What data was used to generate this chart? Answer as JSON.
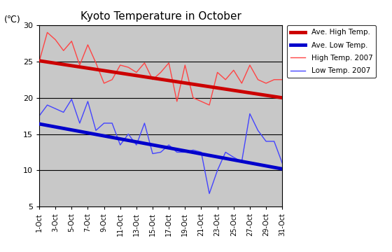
{
  "title": "Kyoto Temperature in October",
  "unit_label": "(℃)",
  "ylim": [
    5,
    30
  ],
  "yticks": [
    5,
    10,
    15,
    20,
    25,
    30
  ],
  "days": [
    1,
    2,
    3,
    4,
    5,
    6,
    7,
    8,
    9,
    10,
    11,
    12,
    13,
    14,
    15,
    16,
    17,
    18,
    19,
    20,
    21,
    22,
    23,
    24,
    25,
    26,
    27,
    28,
    29,
    30,
    31
  ],
  "xlabels": [
    "1-Oct",
    "3-Oct",
    "5-Oct",
    "7-Oct",
    "9-Oct",
    "11-Oct",
    "13-Oct",
    "15-Oct",
    "17-Oct",
    "19-Oct",
    "21-Oct",
    "23-Oct",
    "25-Oct",
    "27-Oct",
    "29-Oct",
    "31-Oct"
  ],
  "xtick_days": [
    1,
    3,
    5,
    7,
    9,
    11,
    13,
    15,
    17,
    19,
    21,
    23,
    25,
    27,
    29,
    31
  ],
  "ave_high_start": 25.1,
  "ave_high_end": 20.0,
  "ave_low_start": 16.4,
  "ave_low_end": 10.2,
  "high_2007": [
    25.0,
    29.0,
    28.0,
    26.5,
    27.8,
    24.5,
    27.3,
    24.8,
    22.0,
    22.5,
    24.5,
    24.2,
    23.5,
    24.8,
    22.5,
    23.5,
    24.8,
    19.5,
    24.5,
    20.0,
    19.5,
    19.0,
    23.5,
    22.5,
    23.8,
    22.0,
    24.5,
    22.5,
    22.0,
    22.5,
    22.5
  ],
  "low_2007": [
    17.5,
    19.0,
    18.5,
    18.0,
    19.8,
    16.5,
    19.5,
    15.5,
    16.5,
    16.5,
    13.5,
    15.0,
    13.5,
    16.5,
    12.3,
    12.5,
    13.5,
    12.5,
    12.5,
    12.8,
    12.5,
    6.8,
    10.0,
    12.5,
    11.8,
    11.2,
    17.8,
    15.5,
    14.0,
    14.0,
    11.0
  ],
  "ave_high_color": "#cc0000",
  "ave_low_color": "#0000cc",
  "high_2007_color": "#ff4444",
  "low_2007_color": "#4444ff",
  "bg_color": "#c8c8c8",
  "hgrid_color": "#000000",
  "hgrid_y": [
    10,
    15,
    20,
    25,
    30
  ],
  "legend_labels": [
    "Ave. High Temp.",
    "Ave. Low Temp.",
    "High Temp. 2007",
    "Low Temp. 2007"
  ]
}
